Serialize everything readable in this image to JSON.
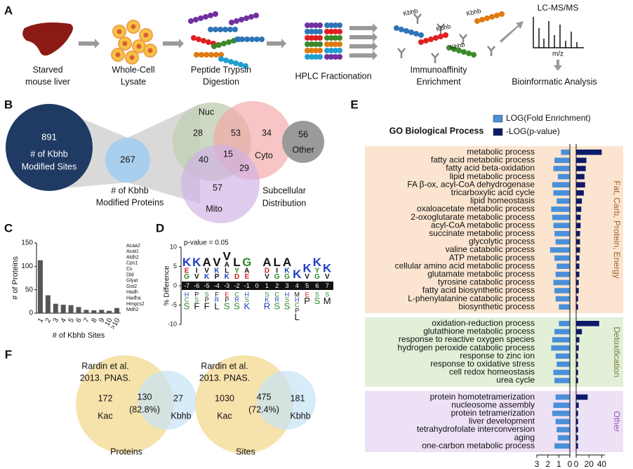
{
  "panel_labels": [
    "A",
    "B",
    "C",
    "D",
    "E",
    "F"
  ],
  "workflow": {
    "steps": [
      [
        "Starved",
        "mouse liver"
      ],
      [
        "Whole-Cell",
        "Lysate"
      ],
      [
        "Peptide Trypsin",
        "Digestion"
      ],
      [
        "HPLC Fractionation"
      ],
      [
        "Immunoaffinity",
        "Enrichment"
      ],
      [
        "Bioinformatic Analysis"
      ]
    ],
    "ms_label": "LC-MS/MS",
    "ms_axis": "m/z",
    "antibody_labels": [
      "Kbhb",
      "Kbhb",
      "Kbhb",
      "Kbhb"
    ]
  },
  "panel_b": {
    "sites_count": 891,
    "sites_label": [
      "# of Kbhb",
      "Modified Sites"
    ],
    "proteins_count": 267,
    "proteins_label": [
      "# of Kbhb",
      "Modified Proteins"
    ],
    "venn": {
      "sets": [
        "Nuc",
        "Cyto",
        "Mito"
      ],
      "nuc_only": 28,
      "nuc_cyto": 53,
      "cyto_only": 34,
      "nuc_mito": 40,
      "all": 15,
      "cyto_mito": 29,
      "mito_only": 57,
      "caption": [
        "Subcellular",
        "Distribution"
      ]
    },
    "other": {
      "count": 56,
      "label": "Other"
    }
  },
  "panel_d": {
    "p_value": "p-value = 0.05",
    "ylabel": "% Difference",
    "ylim": [
      10,
      -10
    ],
    "yticks": [
      10,
      5,
      0,
      -5,
      -10
    ],
    "logo": [
      {
        "position": -7,
        "enriched": "KEG",
        "depleted": "HCS"
      },
      {
        "position": -6,
        "enriched": "KIV",
        "depleted": "PSF"
      },
      {
        "position": -5,
        "enriched": "AVK",
        "depleted": "SPF"
      },
      {
        "position": -4,
        "enriched": "VKP",
        "depleted": "FRL"
      },
      {
        "position": -3,
        "enriched": "VALK",
        "depleted": "EPS"
      },
      {
        "position": -2,
        "enriched": "LYD",
        "depleted": "CRS"
      },
      {
        "position": -1,
        "enriched": "GAE",
        "depleted": "HSK"
      },
      {
        "position": 0
      },
      {
        "position": 1,
        "enriched": "ADV",
        "depleted": "SKR"
      },
      {
        "position": 2,
        "enriched": "LIG",
        "depleted": "CRS"
      },
      {
        "position": 3,
        "enriched": "AKG",
        "depleted": "HSS"
      },
      {
        "position": 4,
        "enriched": "K",
        "depleted": "MHCPL"
      },
      {
        "position": 5,
        "enriched": "KV",
        "depleted": "EP"
      },
      {
        "position": 6,
        "enriched": "KYG",
        "depleted": "SS"
      },
      {
        "position": 7,
        "enriched": "KV",
        "depleted": "SM"
      }
    ]
  },
  "panel_f": {
    "venns": [
      {
        "source": [
          "Rardin et al.",
          "2013. PNAS."
        ],
        "left_only": 172,
        "overlap": 130,
        "overlap_pct": "(82.8%)",
        "right_only": 27,
        "left_label": "Kac",
        "right_label": "Kbhb",
        "caption": "Proteins"
      },
      {
        "source": [
          "Rardin et al.",
          "2013. PNAS."
        ],
        "left_only": 1030,
        "overlap": 475,
        "overlap_pct": "(72.4%)",
        "right_only": 181,
        "left_label": "Kac",
        "right_label": "Kbhb",
        "caption": "Sites"
      }
    ]
  },
  "chart_data": [
    {
      "type": "bar",
      "xlabel": "# of Kbhb Sites",
      "ylabel": "# of Proteins",
      "categories": [
        "1",
        "2",
        "3",
        "4",
        "5",
        "6",
        "7",
        "8",
        "9",
        "10",
        ">10"
      ],
      "values": [
        113,
        38,
        20,
        18,
        17,
        13,
        7,
        6,
        7,
        5,
        11
      ],
      "color": "#555555",
      "ylim": [
        0,
        150
      ],
      "yticks": [
        0,
        50,
        100,
        150
      ],
      "annotation": [
        "Acaa2",
        "Acat1",
        "Aldh2",
        "Cps1",
        "Cs",
        "Dld",
        "Glyat",
        "Got2",
        "Hadh",
        "Hadha",
        "Hmgcs2",
        "Mdh2"
      ]
    },
    {
      "type": "diverging-bar",
      "title": "GO Biological Process",
      "groups": [
        {
          "label": "Fat, Carb, Protein, Energy",
          "color": "#fbe5d0",
          "label_color": "#a0622d",
          "categories": [
            "metabolic process",
            "fatty acid metabolic process",
            "fatty acid beta-oxidation",
            "lipid metabolic process",
            "FA β-ox, acyl-CoA dehydrogenase",
            "tricarboxylic acid cycle",
            "lipid homeostasis",
            "oxaloacetate metabolic process",
            "2-oxoglutarate metabolic process",
            "acyl-CoA metabolic process",
            "succinate metabolic process",
            "glycolytic process",
            "valine catabolic process",
            "ATP metabolic process",
            "cellular amino acid metabolic process",
            "glutamate metabolic process",
            "tyrosine catabolic process",
            "fatty acid biosynthetic process",
            "L-phenylalanine catabolic process",
            "biosynthetic process"
          ]
        },
        {
          "label": "Detoxification",
          "color": "#e3f0d8",
          "label_color": "#7a7a3a",
          "categories": [
            "oxidation-reduction process",
            "glutathione metabolic process",
            "response to reactive oxygen species",
            "hydrogen peroxide catabolic process",
            "response to zinc ion",
            "response to oxidative stress",
            "cell redox homeostasis",
            "urea cycle"
          ]
        },
        {
          "label": "Other",
          "color": "#ede1f6",
          "label_color": "#9a58c0",
          "categories": [
            "protein homotetramerization",
            "nucleosome assembly",
            "protein tetramerization",
            "liver development",
            "tetrahydrofolate interconversion",
            "aging",
            "one-carbon metabolic process"
          ]
        }
      ],
      "series": [
        {
          "name": "LOG(Fold Enrichment)",
          "color": "#4a90d9",
          "axis": "x",
          "values": [
            0.8,
            1.4,
            1.5,
            1.1,
            1.6,
            1.5,
            1.2,
            1.7,
            1.6,
            1.5,
            1.4,
            1.3,
            1.8,
            1.4,
            1.2,
            1.3,
            1.5,
            1.4,
            1.3,
            1.0,
            1.0,
            1.4,
            1.6,
            1.7,
            1.3,
            1.2,
            1.5,
            1.4,
            1.3,
            1.5,
            1.6,
            1.3,
            1.2,
            1.1,
            1.4
          ]
        },
        {
          "name": "-LOG(p-value)",
          "color": "#0d1a6b",
          "axis": "x2",
          "values": [
            40,
            16,
            15,
            13,
            14,
            12,
            9,
            8,
            7,
            7,
            6,
            6,
            6,
            5,
            5,
            5,
            4,
            4,
            3,
            3,
            36,
            9,
            5,
            4,
            3,
            3,
            3,
            3,
            18,
            4,
            3,
            3,
            3,
            3,
            3
          ]
        }
      ],
      "xlim": [
        3,
        0
      ],
      "xticks": [
        3,
        2,
        1,
        0
      ],
      "x2lim": [
        0,
        45
      ],
      "x2ticks": [
        0,
        20,
        40
      ]
    }
  ]
}
